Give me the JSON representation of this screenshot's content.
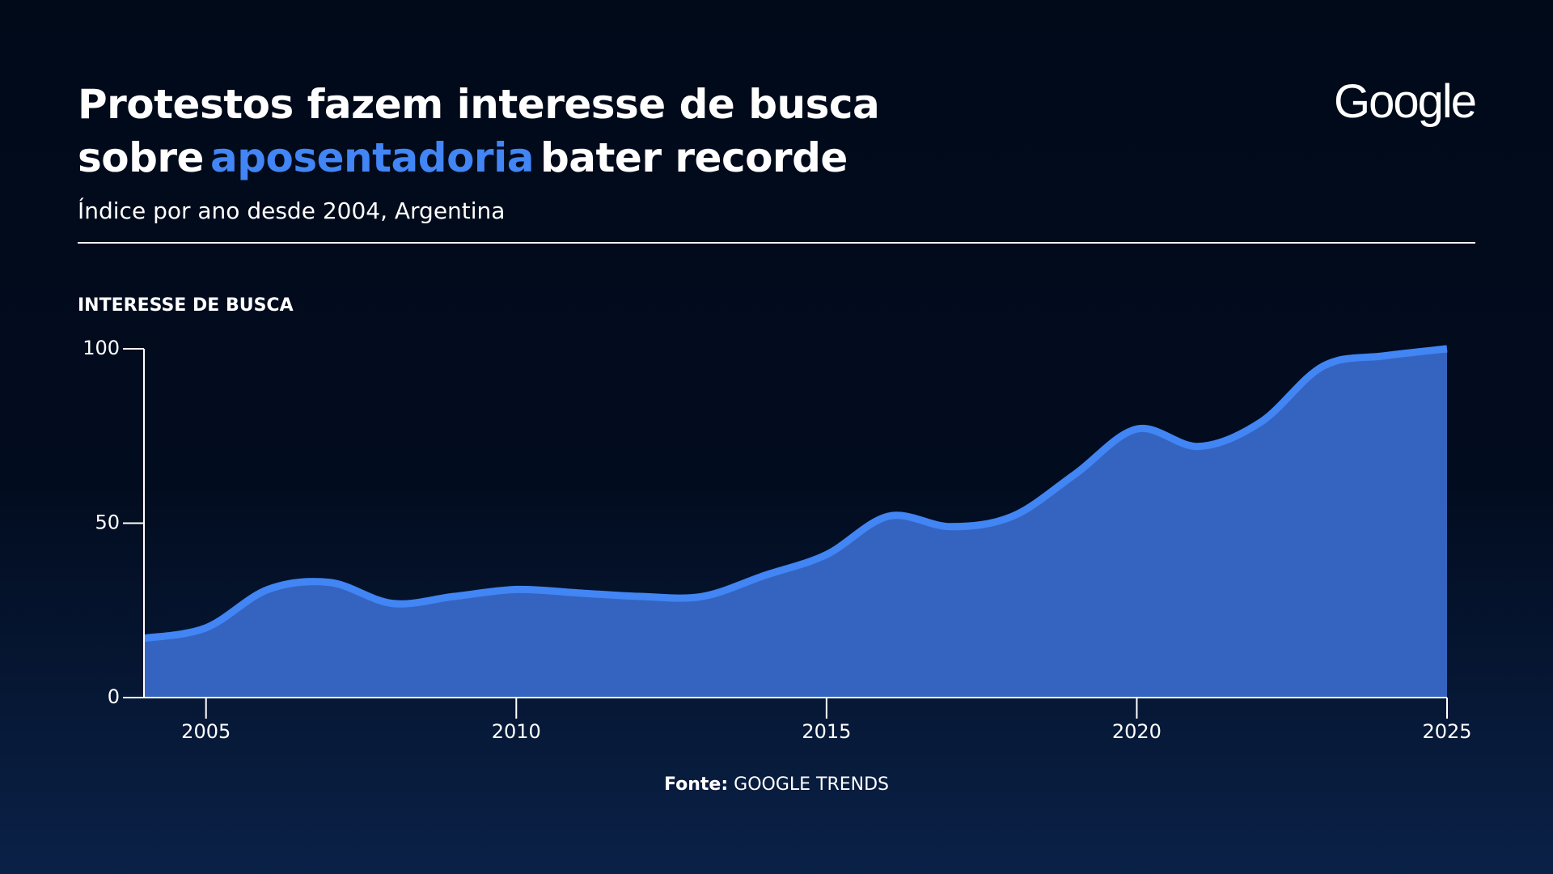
{
  "chart_data": {
    "type": "area",
    "title_line1": "Protestos fazem interesse de busca",
    "title_line2_start": "sobre",
    "title_highlight": "aposentadoria",
    "title_line2_end": "bater recorde",
    "highlight_color": "#4285f4",
    "subtitle": "Índice por ano desde 2004, Argentina",
    "logo": "Google",
    "y_label": "INTERESSE DE BUSCA",
    "source_label": "Fonte:",
    "source": "GOOGLE TRENDS",
    "x": [
      2004,
      2005,
      2006,
      2007,
      2008,
      2009,
      2010,
      2011,
      2012,
      2013,
      2014,
      2015,
      2016,
      2017,
      2018,
      2019,
      2020,
      2021,
      2022,
      2023,
      2024,
      2025
    ],
    "series": [
      {
        "name": "Interesse de busca",
        "color": "#4285f4",
        "fill": "#3464c0",
        "values": [
          17,
          20,
          31,
          33,
          27,
          29,
          31,
          30,
          29,
          29,
          35,
          41,
          52,
          49,
          52,
          64,
          77,
          72,
          79,
          95,
          98,
          100
        ]
      }
    ],
    "xlim": [
      2004,
      2025
    ],
    "xticks": [
      2005,
      2010,
      2015,
      2020,
      2025
    ],
    "ylim": [
      0,
      100
    ],
    "yticks": [
      0,
      50,
      100
    ]
  }
}
